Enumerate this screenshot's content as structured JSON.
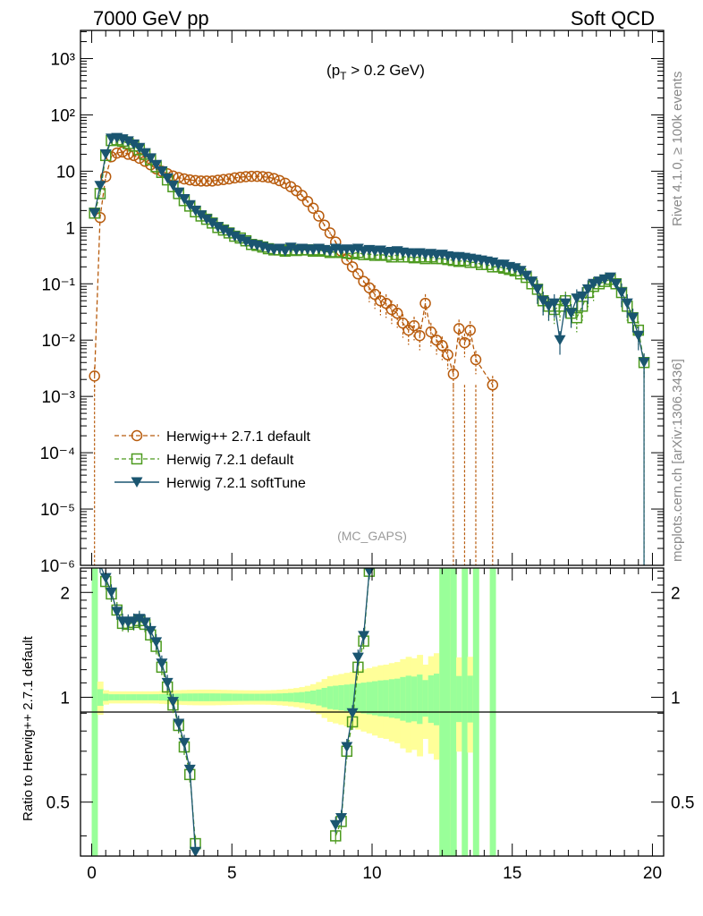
{
  "header": {
    "left": "7000 GeV pp",
    "right": "Soft QCD"
  },
  "side_labels": {
    "rivet": "Rivet 4.1.0, ≥ 100k events",
    "mcplots": "mcplots.cern.ch [arXiv:1306.3436]"
  },
  "chart_data": [
    {
      "type": "line",
      "panel": "main",
      "subtitle": "(p_T > 0.2 GeV)",
      "analysis_tag": "(MC_GAPS)",
      "xlim": [
        -0.4,
        20.4
      ],
      "ylim_log10": [
        -6,
        3.5
      ],
      "yscale": "log",
      "ytick_labels": [
        "10⁻⁶",
        "10⁻⁵",
        "10⁻⁴",
        "10⁻³",
        "10⁻²",
        "10⁻¹",
        "1",
        "10",
        "10²",
        "10³"
      ],
      "legend": [
        "Herwig++ 2.7.1 default",
        "Herwig 7.2.1 default",
        "Herwig 7.2.1 softTune"
      ],
      "series": [
        {
          "name": "Herwig++ 2.7.1 default",
          "color": "#b85c0e",
          "marker": "circle-open",
          "linestyle": "dashed",
          "x": [
            0.1,
            0.3,
            0.5,
            0.7,
            0.9,
            1.1,
            1.3,
            1.5,
            1.7,
            1.9,
            2.1,
            2.3,
            2.5,
            2.7,
            2.9,
            3.1,
            3.3,
            3.5,
            3.7,
            3.9,
            4.1,
            4.3,
            4.5,
            4.7,
            4.9,
            5.1,
            5.3,
            5.5,
            5.7,
            5.9,
            6.1,
            6.3,
            6.5,
            6.7,
            6.9,
            7.1,
            7.3,
            7.5,
            7.7,
            7.9,
            8.1,
            8.3,
            8.5,
            8.7,
            8.9,
            9.1,
            9.3,
            9.5,
            9.7,
            9.9,
            10.1,
            10.3,
            10.5,
            10.7,
            10.9,
            11.1,
            11.3,
            11.5,
            11.7,
            11.9,
            12.1,
            12.3,
            12.5,
            12.7,
            12.9,
            13.1,
            13.3,
            13.5,
            13.7,
            14.3
          ],
          "y": [
            0.0023,
            1.5,
            8,
            18,
            21,
            22,
            20,
            19,
            17,
            15,
            13,
            11,
            10,
            9,
            8.2,
            7.7,
            7.3,
            7,
            6.8,
            6.7,
            6.7,
            6.7,
            6.9,
            7.1,
            7.3,
            7.6,
            7.8,
            8,
            8.1,
            8.1,
            8,
            7.8,
            7.4,
            6.8,
            6.1,
            5.3,
            4.5,
            3.7,
            2.9,
            2.2,
            1.6,
            1.1,
            0.8,
            0.55,
            0.38,
            0.27,
            0.2,
            0.15,
            0.11,
            0.085,
            0.065,
            0.05,
            0.045,
            0.035,
            0.03,
            0.02,
            0.015,
            0.018,
            0.012,
            0.045,
            0.014,
            0.01,
            0.008,
            0.0055,
            0.0025,
            0.016,
            0.009,
            0.015,
            0.0045,
            0.0016
          ]
        },
        {
          "name": "Herwig 7.2.1 default",
          "color": "#4c9a1e",
          "marker": "square-open",
          "linestyle": "dashed",
          "x": [
            0.1,
            0.3,
            0.5,
            0.7,
            0.9,
            1.1,
            1.3,
            1.5,
            1.7,
            1.9,
            2.1,
            2.3,
            2.5,
            2.7,
            2.9,
            3.1,
            3.3,
            3.5,
            3.7,
            3.9,
            4.1,
            4.3,
            4.5,
            4.7,
            4.9,
            5.1,
            5.3,
            5.5,
            5.7,
            5.9,
            6.1,
            6.3,
            6.5,
            6.7,
            6.9,
            7.1,
            7.3,
            7.5,
            7.7,
            7.9,
            8.1,
            8.3,
            8.5,
            8.7,
            8.9,
            9.1,
            9.3,
            9.5,
            9.7,
            9.9,
            10.1,
            10.3,
            10.5,
            10.7,
            10.9,
            11.1,
            11.3,
            11.5,
            11.7,
            11.9,
            12.1,
            12.3,
            12.5,
            12.7,
            12.9,
            13.1,
            13.3,
            13.5,
            13.7,
            13.9,
            14.1,
            14.3,
            14.5,
            14.7,
            14.9,
            15.1,
            15.3,
            15.5,
            15.7,
            15.9,
            16.1,
            16.3,
            16.5,
            16.7,
            16.9,
            17.1,
            17.3,
            17.5,
            17.7,
            17.9,
            18.1,
            18.3,
            18.5,
            18.7,
            18.9,
            19.1,
            19.3,
            19.5,
            19.7
          ],
          "y": [
            1.8,
            4,
            19,
            35,
            36,
            34,
            31,
            28,
            24,
            20,
            16,
            12,
            9.5,
            7,
            5.3,
            4,
            3,
            2.4,
            1.9,
            1.6,
            1.4,
            1.2,
            1,
            0.9,
            0.8,
            0.7,
            0.65,
            0.58,
            0.5,
            0.48,
            0.45,
            0.42,
            0.4,
            0.4,
            0.38,
            0.4,
            0.39,
            0.4,
            0.4,
            0.38,
            0.4,
            0.38,
            0.36,
            0.37,
            0.36,
            0.35,
            0.34,
            0.36,
            0.33,
            0.34,
            0.32,
            0.33,
            0.32,
            0.3,
            0.33,
            0.3,
            0.3,
            0.29,
            0.3,
            0.28,
            0.3,
            0.28,
            0.28,
            0.27,
            0.26,
            0.25,
            0.26,
            0.24,
            0.24,
            0.22,
            0.22,
            0.2,
            0.2,
            0.19,
            0.18,
            0.17,
            0.15,
            0.13,
            0.1,
            0.08,
            0.05,
            0.04,
            0.035,
            0.04,
            0.05,
            0.03,
            0.025,
            0.04,
            0.07,
            0.09,
            0.1,
            0.11,
            0.12,
            0.1,
            0.07,
            0.04,
            0.025,
            0.015,
            0.004
          ]
        },
        {
          "name": "Herwig 7.2.1 softTune",
          "color": "#1a5570",
          "marker": "triangle-down-filled",
          "linestyle": "solid",
          "x": [
            0.1,
            0.3,
            0.5,
            0.7,
            0.9,
            1.1,
            1.3,
            1.5,
            1.7,
            1.9,
            2.1,
            2.3,
            2.5,
            2.7,
            2.9,
            3.1,
            3.3,
            3.5,
            3.7,
            3.9,
            4.1,
            4.3,
            4.5,
            4.7,
            4.9,
            5.1,
            5.3,
            5.5,
            5.7,
            5.9,
            6.1,
            6.3,
            6.5,
            6.7,
            6.9,
            7.1,
            7.3,
            7.5,
            7.7,
            7.9,
            8.1,
            8.3,
            8.5,
            8.7,
            8.9,
            9.1,
            9.3,
            9.5,
            9.7,
            9.9,
            10.1,
            10.3,
            10.5,
            10.7,
            10.9,
            11.1,
            11.3,
            11.5,
            11.7,
            11.9,
            12.1,
            12.3,
            12.5,
            12.7,
            12.9,
            13.1,
            13.3,
            13.5,
            13.7,
            13.9,
            14.1,
            14.3,
            14.5,
            14.7,
            14.9,
            15.1,
            15.3,
            15.5,
            15.7,
            15.9,
            16.1,
            16.3,
            16.5,
            16.7,
            16.9,
            17.1,
            17.3,
            17.5,
            17.7,
            17.9,
            18.1,
            18.3,
            18.5,
            18.7,
            18.9,
            19.1,
            19.3,
            19.5,
            19.7
          ],
          "y": [
            1.8,
            5.5,
            20,
            38,
            39,
            37,
            34,
            30,
            26,
            21,
            17,
            13,
            10,
            7.5,
            5.6,
            4.2,
            3.2,
            2.5,
            2,
            1.65,
            1.4,
            1.2,
            1.02,
            0.9,
            0.8,
            0.7,
            0.62,
            0.56,
            0.5,
            0.48,
            0.45,
            0.42,
            0.4,
            0.42,
            0.38,
            0.44,
            0.4,
            0.42,
            0.41,
            0.4,
            0.42,
            0.4,
            0.38,
            0.42,
            0.4,
            0.41,
            0.4,
            0.42,
            0.38,
            0.4,
            0.38,
            0.39,
            0.36,
            0.37,
            0.38,
            0.36,
            0.35,
            0.34,
            0.35,
            0.33,
            0.34,
            0.32,
            0.33,
            0.31,
            0.3,
            0.3,
            0.29,
            0.28,
            0.27,
            0.26,
            0.25,
            0.24,
            0.22,
            0.22,
            0.2,
            0.19,
            0.17,
            0.14,
            0.11,
            0.08,
            0.05,
            0.04,
            0.045,
            0.01,
            0.045,
            0.03,
            0.055,
            0.06,
            0.08,
            0.1,
            0.11,
            0.12,
            0.13,
            0.1,
            0.07,
            0.045,
            0.025,
            0.012,
            0.004
          ]
        }
      ]
    },
    {
      "type": "line",
      "panel": "ratio",
      "ylabel": "Ratio to Herwig++ 2.7.1 default",
      "xlabel": "",
      "xlim": [
        -0.4,
        20.4
      ],
      "ylim": [
        0.35,
        2.35
      ],
      "yscale": "log",
      "x_ticks": [
        0,
        5,
        10,
        15,
        20
      ],
      "y_ticks": [
        0.5,
        1,
        2
      ],
      "series": [
        {
          "name": "Herwig 7.2.1 default",
          "color": "#4c9a1e",
          "x": [
            0.5,
            0.7,
            0.9,
            1.1,
            1.3,
            1.5,
            1.7,
            1.9,
            2.1,
            2.3,
            2.5,
            2.7,
            2.9,
            3.1,
            3.3,
            3.5,
            3.7,
            8.7,
            8.9,
            9.1,
            9.3,
            9.5,
            9.7,
            9.9
          ],
          "y": [
            2.15,
            1.98,
            1.78,
            1.63,
            1.62,
            1.64,
            1.66,
            1.62,
            1.51,
            1.4,
            1.22,
            1.07,
            0.95,
            0.83,
            0.72,
            0.6,
            0.38,
            0.4,
            0.44,
            0.7,
            0.85,
            1.22,
            1.45,
            2.3
          ]
        },
        {
          "name": "Herwig 7.2.1 softTune",
          "color": "#1a5570",
          "x": [
            0.3,
            0.5,
            0.7,
            0.9,
            1.1,
            1.3,
            1.5,
            1.7,
            1.9,
            2.1,
            2.3,
            2.5,
            2.7,
            2.9,
            3.1,
            3.3,
            3.5,
            3.7,
            8.7,
            8.9,
            9.1,
            9.3,
            9.5,
            9.7,
            9.9
          ],
          "y": [
            2.4,
            2.2,
            2.0,
            1.76,
            1.65,
            1.64,
            1.65,
            1.68,
            1.64,
            1.55,
            1.44,
            1.25,
            1.1,
            0.97,
            0.84,
            0.74,
            0.62,
            0.36,
            0.43,
            0.45,
            0.72,
            0.9,
            1.3,
            1.5,
            2.3
          ]
        }
      ]
    }
  ]
}
